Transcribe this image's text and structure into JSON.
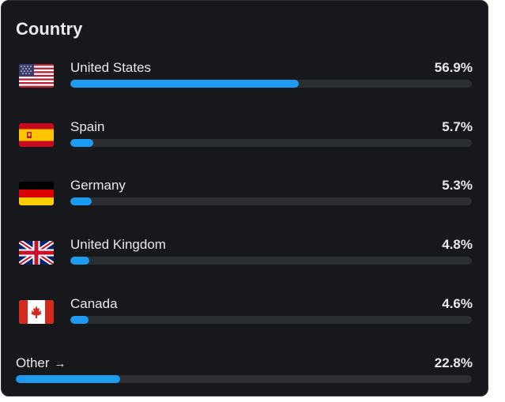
{
  "card": {
    "title": "Country"
  },
  "countries": [
    {
      "name": "United States",
      "percent_label": "56.9%",
      "fraction": 0.569,
      "flag_icon": "us-flag-icon"
    },
    {
      "name": "Spain",
      "percent_label": "5.7%",
      "fraction": 0.057,
      "flag_icon": "spain-flag-icon"
    },
    {
      "name": "Germany",
      "percent_label": "5.3%",
      "fraction": 0.053,
      "flag_icon": "germany-flag-icon"
    },
    {
      "name": "United Kingdom",
      "percent_label": "4.8%",
      "fraction": 0.048,
      "flag_icon": "uk-flag-icon"
    },
    {
      "name": "Canada",
      "percent_label": "4.6%",
      "fraction": 0.046,
      "flag_icon": "canada-flag-icon"
    }
  ],
  "other": {
    "label": "Other",
    "arrow_icon": "arrow-right-icon",
    "percent_label": "22.8%",
    "fraction": 0.228
  },
  "colors": {
    "bar_fill": "#1d9bf0",
    "bar_track": "#2b2f33",
    "background": "#16181c",
    "text": "#e7e9ea"
  }
}
